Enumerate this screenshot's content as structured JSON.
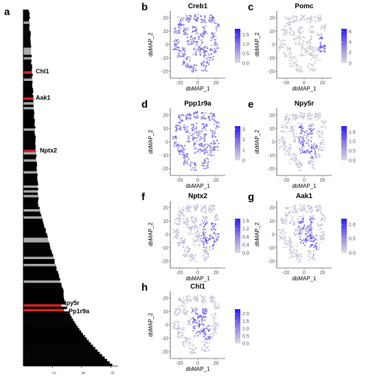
{
  "figure": {
    "panel_a": {
      "letter": "a",
      "highlighted_labels": [
        "Chl1",
        "Aak1",
        "Nptx2",
        "Npy5r",
        "Pp1r9a"
      ],
      "x_ticks": [
        "2",
        "4",
        "6"
      ]
    },
    "umap_panels": [
      {
        "letter": "b",
        "title": "Creb1",
        "legend_ticks": [
          "1.5",
          "1.0",
          "0.5",
          "0.0"
        ],
        "legend_max": 1.8,
        "hotspot": "spread"
      },
      {
        "letter": "c",
        "title": "Pomc",
        "legend_ticks": [
          "6",
          "4",
          "2",
          "0"
        ],
        "legend_max": 6.5,
        "hotspot": "right"
      },
      {
        "letter": "d",
        "title": "Ppp1r9a",
        "legend_ticks": [
          "3",
          "2",
          "1",
          "0"
        ],
        "legend_max": 3.3,
        "hotspot": "spread"
      },
      {
        "letter": "e",
        "title": "Npy5r",
        "legend_ticks": [
          "1.5",
          "1.0",
          "0.5",
          "0.0"
        ],
        "legend_max": 1.8,
        "hotspot": "center"
      },
      {
        "letter": "f",
        "title": "Nptx2",
        "legend_ticks": [
          "1.6",
          "1.2",
          "0.8",
          "0.4",
          "0.0"
        ],
        "legend_max": 1.7,
        "hotspot": "center-right"
      },
      {
        "letter": "g",
        "title": "Aak1",
        "legend_ticks": [
          "1.0",
          "0.5",
          "0.0"
        ],
        "legend_max": 1.2,
        "hotspot": "center"
      },
      {
        "letter": "h",
        "title": "Chl1",
        "legend_ticks": [
          "2.0",
          "1.5",
          "1.0",
          "0.5",
          "0.0"
        ],
        "legend_max": 2.3,
        "hotspot": "center"
      }
    ],
    "umap_axes": {
      "xlabel": "dbMAP_1",
      "ylabel": "dbMAP_2",
      "x_ticks": [
        "-20",
        "0",
        "20"
      ],
      "y_ticks": [
        "20",
        "10",
        "0",
        "-10",
        "-20"
      ]
    }
  },
  "chart_data": [
    {
      "type": "bar",
      "orientation": "horizontal",
      "title": "",
      "xlabel": "",
      "ylabel": "",
      "xlim": [
        0,
        6.5
      ],
      "highlight_color": "#e02020",
      "category_count": 150,
      "values_profile": "sorted ascending top to bottom; mostly near 0.5 at top rising to about 6.1 at bottom",
      "highlights": [
        {
          "name": "Chl1",
          "value": 0.6
        },
        {
          "name": "Aak1",
          "value": 0.7
        },
        {
          "name": "Nptx2",
          "value": 0.85
        },
        {
          "name": "Npy5r",
          "value": 2.6
        },
        {
          "name": "Pp1r9a",
          "value": 2.8
        }
      ]
    },
    {
      "type": "scatter",
      "title": "Creb1",
      "xlabel": "dbMAP_1",
      "ylabel": "dbMAP_2",
      "xlim": [
        -30,
        30
      ],
      "ylim": [
        -25,
        25
      ],
      "color_range": [
        0.0,
        1.8
      ]
    },
    {
      "type": "scatter",
      "title": "Pomc",
      "xlabel": "dbMAP_1",
      "ylabel": "dbMAP_2",
      "xlim": [
        -30,
        30
      ],
      "ylim": [
        -25,
        25
      ],
      "color_range": [
        0,
        6.5
      ]
    },
    {
      "type": "scatter",
      "title": "Ppp1r9a",
      "xlabel": "dbMAP_1",
      "ylabel": "dbMAP_2",
      "xlim": [
        -30,
        30
      ],
      "ylim": [
        -25,
        25
      ],
      "color_range": [
        0,
        3.3
      ]
    },
    {
      "type": "scatter",
      "title": "Npy5r",
      "xlabel": "dbMAP_1",
      "ylabel": "dbMAP_2",
      "xlim": [
        -30,
        30
      ],
      "ylim": [
        -25,
        25
      ],
      "color_range": [
        0.0,
        1.8
      ]
    },
    {
      "type": "scatter",
      "title": "Nptx2",
      "xlabel": "dbMAP_1",
      "ylabel": "dbMAP_2",
      "xlim": [
        -30,
        30
      ],
      "ylim": [
        -25,
        25
      ],
      "color_range": [
        0.0,
        1.7
      ]
    },
    {
      "type": "scatter",
      "title": "Aak1",
      "xlabel": "dbMAP_1",
      "ylabel": "dbMAP_2",
      "xlim": [
        -30,
        30
      ],
      "ylim": [
        -25,
        25
      ],
      "color_range": [
        0.0,
        1.2
      ]
    },
    {
      "type": "scatter",
      "title": "Chl1",
      "xlabel": "dbMAP_1",
      "ylabel": "dbMAP_2",
      "xlim": [
        -30,
        30
      ],
      "ylim": [
        -25,
        25
      ],
      "color_range": [
        0.0,
        2.3
      ]
    }
  ]
}
